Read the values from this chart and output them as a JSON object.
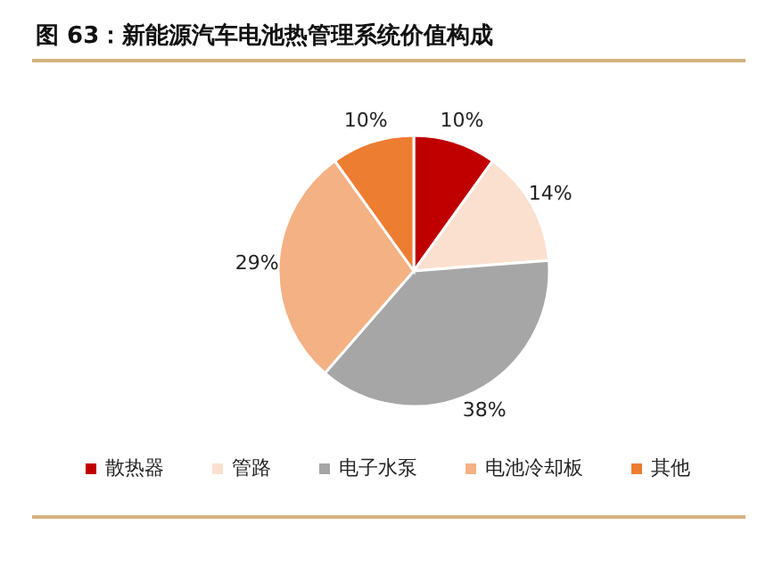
{
  "chart_data": {
    "type": "pie",
    "title": "图 63：新能源汽车电池热管理系统价值构成",
    "categories": [
      "散热器",
      "管路",
      "电子水泵",
      "电池冷却板",
      "其他"
    ],
    "values": [
      10,
      14,
      38,
      29,
      10
    ],
    "value_labels": [
      "10%",
      "14%",
      "38%",
      "29%",
      "10%"
    ],
    "colors": [
      "#c00000",
      "#fbe0cf",
      "#a6a6a6",
      "#f4b183",
      "#ed7d31"
    ],
    "legend": "bottom"
  }
}
